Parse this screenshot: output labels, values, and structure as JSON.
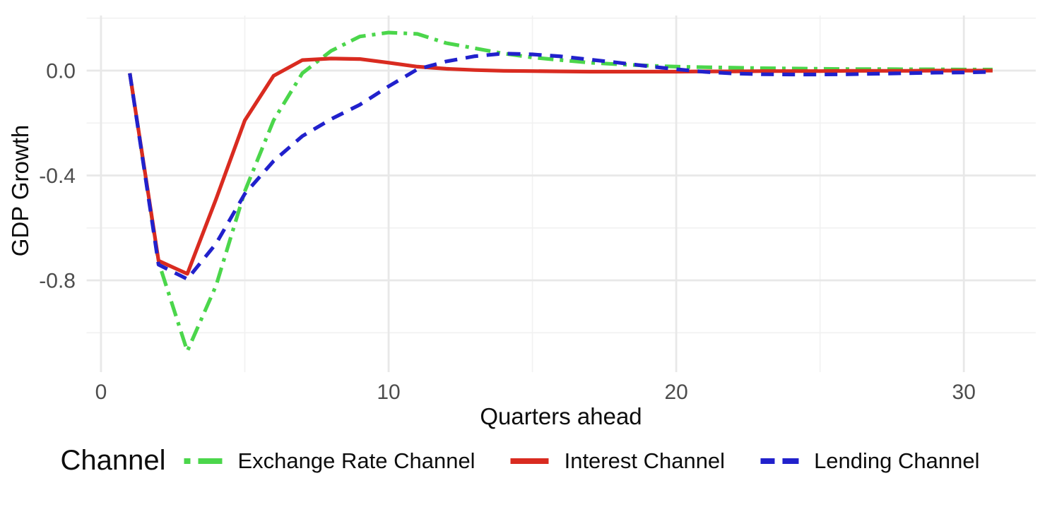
{
  "chart_data": {
    "type": "line",
    "title": "",
    "xlabel": "Quarters ahead",
    "ylabel": "GDP Growth",
    "legend_title": "Channel",
    "legend_position": "bottom",
    "grid": true,
    "xlim": [
      -0.5,
      32.5
    ],
    "ylim": [
      -1.15,
      0.21
    ],
    "x_ticks": [
      0,
      10,
      20,
      30
    ],
    "x_tick_labels": [
      "0",
      "10",
      "20",
      "30"
    ],
    "x_minor_ticks": [
      5,
      15,
      25
    ],
    "y_ticks": [
      0.0,
      -0.4,
      -0.8
    ],
    "y_tick_labels": [
      "0.0",
      "-0.4",
      "-0.8"
    ],
    "y_minor_ticks": [
      0.2,
      -0.2,
      -0.6,
      -1.0
    ],
    "grid_major_color": "#e8e8e8",
    "grid_minor_color": "#f1f1f1",
    "tick_label_color": "#4d4d4d",
    "x": [
      1,
      2,
      3,
      4,
      5,
      6,
      7,
      8,
      9,
      10,
      11,
      12,
      13,
      14,
      15,
      16,
      17,
      18,
      19,
      20,
      21,
      22,
      23,
      24,
      25,
      26,
      27,
      28,
      29,
      30,
      31
    ],
    "series": [
      {
        "name": "Exchange Rate Channel",
        "color": "#4bd64b",
        "dash": "dotdash",
        "values": [
          -0.01,
          -0.73,
          -1.07,
          -0.82,
          -0.46,
          -0.19,
          -0.01,
          0.075,
          0.13,
          0.145,
          0.14,
          0.105,
          0.085,
          0.065,
          0.05,
          0.04,
          0.03,
          0.024,
          0.019,
          0.015,
          0.013,
          0.011,
          0.009,
          0.008,
          0.007,
          0.006,
          0.006,
          0.005,
          0.005,
          0.004,
          0.004
        ]
      },
      {
        "name": "Interest Channel",
        "color": "#d92b20",
        "dash": "solid",
        "values": [
          -0.01,
          -0.725,
          -0.775,
          -0.49,
          -0.19,
          -0.02,
          0.04,
          0.046,
          0.044,
          0.03,
          0.015,
          0.007,
          0.002,
          -0.001,
          -0.002,
          -0.003,
          -0.004,
          -0.004,
          -0.004,
          -0.004,
          -0.003,
          -0.003,
          -0.002,
          -0.002,
          -0.002,
          -0.001,
          -0.001,
          -0.001,
          0.0,
          0.0,
          0.0
        ]
      },
      {
        "name": "Lending Channel",
        "color": "#2121cc",
        "dash": "dashed",
        "values": [
          -0.01,
          -0.74,
          -0.795,
          -0.66,
          -0.47,
          -0.345,
          -0.25,
          -0.185,
          -0.13,
          -0.06,
          0.005,
          0.035,
          0.055,
          0.065,
          0.062,
          0.054,
          0.042,
          0.03,
          0.017,
          0.005,
          -0.005,
          -0.011,
          -0.014,
          -0.015,
          -0.015,
          -0.014,
          -0.012,
          -0.01,
          -0.008,
          -0.007,
          -0.005
        ]
      }
    ]
  }
}
